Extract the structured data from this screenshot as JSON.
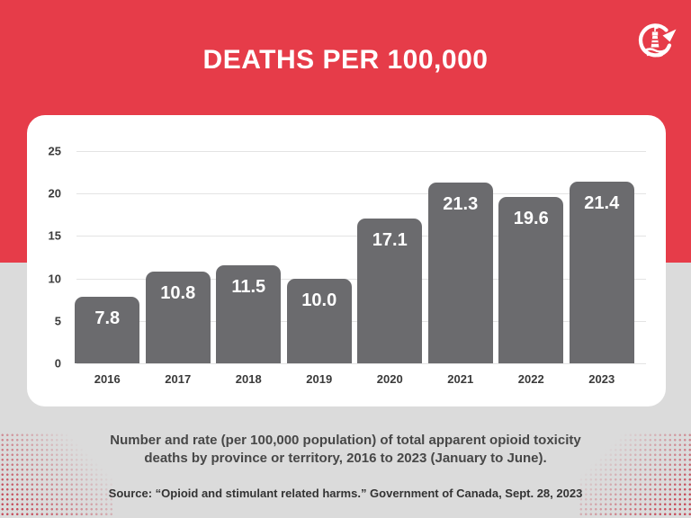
{
  "header": {
    "title": "DEATHS PER 100,000",
    "logo": "lighthouse-circle-arrow-logo"
  },
  "chart_data": {
    "type": "bar",
    "title": "DEATHS PER 100,000",
    "categories": [
      "2016",
      "2017",
      "2018",
      "2019",
      "2020",
      "2021",
      "2022",
      "2023"
    ],
    "values": [
      7.8,
      10.8,
      11.5,
      10.0,
      17.1,
      21.3,
      19.6,
      21.4
    ],
    "value_labels": [
      "7.8",
      "10.8",
      "11.5",
      "10.0",
      "17.1",
      "21.3",
      "19.6",
      "21.4"
    ],
    "xlabel": "",
    "ylabel": "",
    "ylim": [
      0,
      25
    ],
    "yticks": [
      0,
      5,
      10,
      15,
      20,
      25
    ],
    "grid": true,
    "legend": false,
    "bar_color": "#6b6b6e",
    "value_label_color": "#ffffff"
  },
  "footer": {
    "caption_line1": "Number and rate (per 100,000 population) of total apparent opioid toxicity",
    "caption_line2": "deaths by province or territory, 2016 to 2023 (January to June).",
    "source": "Source: “Opioid and stimulant related harms.” Government of Canada, Sept. 28, 2023"
  },
  "colors": {
    "accent_red": "#e63c49",
    "background_gray": "#dbdbdb",
    "bar_gray": "#6b6b6e",
    "card_white": "#ffffff",
    "gridline": "#e3e3e3"
  }
}
